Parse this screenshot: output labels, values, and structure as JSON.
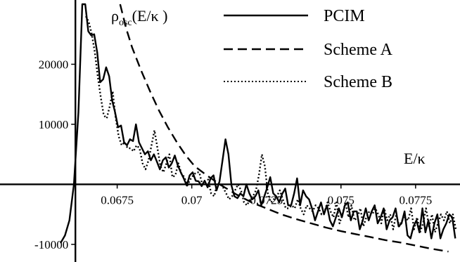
{
  "chart_data": {
    "type": "line",
    "title": "",
    "xlabel": "E/κ",
    "ylabel": "ρosc(E/κ )",
    "xlim": [
      0.0656,
      0.0788
    ],
    "ylim": [
      -12000,
      30000
    ],
    "x_ticks": [
      {
        "value": 0.0675,
        "label": "0.0675"
      },
      {
        "value": 0.07,
        "label": "0.07"
      },
      {
        "value": 0.0725,
        "label": "0.0725"
      },
      {
        "value": 0.075,
        "label": "0.075"
      },
      {
        "value": 0.0775,
        "label": "0.0775"
      }
    ],
    "y_ticks": [
      {
        "value": 20000,
        "label": "20000"
      },
      {
        "value": 10000,
        "label": "10000"
      },
      {
        "value": -10000,
        "label": "-10000"
      }
    ],
    "grid": false,
    "legend": {
      "placement": "top-right"
    },
    "series": [
      {
        "name": "PCIM",
        "style": "solid",
        "x": [
          0.0656,
          0.06575,
          0.0659,
          0.06605,
          0.0662,
          0.06633,
          0.06643,
          0.06653,
          0.06663,
          0.06673,
          0.06683,
          0.06693,
          0.06703,
          0.06713,
          0.06723,
          0.06733,
          0.06743,
          0.06753,
          0.06763,
          0.06773,
          0.06783,
          0.06793,
          0.06803,
          0.06813,
          0.06823,
          0.06833,
          0.06843,
          0.06853,
          0.06863,
          0.06873,
          0.06883,
          0.06893,
          0.06903,
          0.06913,
          0.06923,
          0.06933,
          0.06943,
          0.06953,
          0.06963,
          0.06973,
          0.06983,
          0.06993,
          0.07003,
          0.07013,
          0.07023,
          0.07033,
          0.07043,
          0.07053,
          0.07063,
          0.07073,
          0.07083,
          0.07093,
          0.07103,
          0.07113,
          0.07123,
          0.07133,
          0.07143,
          0.07153,
          0.07163,
          0.07173,
          0.07183,
          0.07193,
          0.07203,
          0.07213,
          0.07223,
          0.07233,
          0.07243,
          0.07253,
          0.07263,
          0.07273,
          0.07283,
          0.07293,
          0.07303,
          0.07313,
          0.07323,
          0.07333,
          0.07343,
          0.07353,
          0.07363,
          0.07373,
          0.07383,
          0.07393,
          0.07403,
          0.07413,
          0.07423,
          0.07433,
          0.07443,
          0.07453,
          0.07463,
          0.07473,
          0.07483,
          0.07493,
          0.07503,
          0.07513,
          0.07523,
          0.07533,
          0.07543,
          0.07553,
          0.07563,
          0.07573,
          0.07583,
          0.07593,
          0.07603,
          0.07613,
          0.07623,
          0.07633,
          0.07643,
          0.07653,
          0.07663,
          0.07673,
          0.07683,
          0.07693,
          0.07703,
          0.07713,
          0.07723,
          0.07733,
          0.07743,
          0.07753,
          0.07763,
          0.07773,
          0.07783,
          0.07793,
          0.07803,
          0.07813,
          0.07823,
          0.07833,
          0.07843,
          0.07853,
          0.07863,
          0.07873,
          0.07883
        ],
        "y": [
          -9800,
          -8500,
          -6000,
          0,
          12000,
          30000,
          30000,
          25500,
          24800,
          25000,
          22000,
          17000,
          17500,
          19500,
          18000,
          14000,
          12000,
          9500,
          9800,
          7000,
          6500,
          7500,
          7200,
          10000,
          7000,
          6000,
          5000,
          5500,
          4000,
          5000,
          3800,
          2500,
          4000,
          4500,
          2800,
          3500,
          4800,
          3200,
          2000,
          1000,
          -200,
          1500,
          2000,
          600,
          500,
          -300,
          600,
          -500,
          1000,
          1500,
          -1000,
          500,
          4000,
          7500,
          5000,
          -200,
          -2000,
          -2300,
          -1500,
          -2000,
          0,
          -1500,
          -2500,
          -2000,
          -1000,
          -3500,
          -2000,
          -500,
          1200,
          -1500,
          -2000,
          -3000,
          -1600,
          -700,
          -3500,
          -3500,
          -1500,
          1000,
          -3500,
          -1000,
          -2000,
          -2500,
          -4000,
          -6000,
          -4500,
          -3000,
          -5000,
          -3500,
          -6000,
          -7000,
          -5500,
          -4000,
          -5500,
          -3500,
          -3000,
          -6000,
          -4500,
          -4500,
          -7500,
          -6000,
          -4000,
          -6000,
          -4500,
          -3500,
          -6500,
          -5500,
          -4000,
          -7500,
          -6000,
          -5500,
          -4000,
          -7000,
          -6500,
          -4500,
          -8500,
          -9000,
          -7000,
          -6000,
          -8000,
          -4000,
          -8000,
          -6000,
          -9000,
          -6500,
          -5000,
          -9000,
          -7500,
          -6500,
          -5000,
          -5500,
          -9000
        ],
        "label_printed": "PCIM"
      },
      {
        "name": "Scheme A",
        "style": "dashed",
        "x": [
          0.0676,
          0.0678,
          0.068,
          0.0683,
          0.0686,
          0.0689,
          0.0692,
          0.0695,
          0.0698,
          0.0701,
          0.0705,
          0.071,
          0.0715,
          0.072,
          0.0725,
          0.073,
          0.0735,
          0.074,
          0.0745,
          0.075,
          0.0755,
          0.076,
          0.0765,
          0.077,
          0.0775,
          0.078,
          0.0786
        ],
        "y": [
          30000,
          26000,
          22800,
          19000,
          15500,
          12300,
          9500,
          7000,
          4800,
          3000,
          1500,
          -200,
          -1700,
          -3000,
          -4000,
          -5000,
          -5800,
          -6500,
          -7200,
          -7800,
          -8300,
          -8800,
          -9300,
          -9700,
          -10200,
          -10700,
          -11200
        ]
      },
      {
        "name": "Scheme B",
        "style": "dotted",
        "x": [
          0.06645,
          0.06655,
          0.06665,
          0.06675,
          0.06685,
          0.06695,
          0.06705,
          0.06715,
          0.06725,
          0.06735,
          0.06745,
          0.06755,
          0.06765,
          0.06775,
          0.06785,
          0.06795,
          0.06805,
          0.06815,
          0.06825,
          0.06835,
          0.06845,
          0.06855,
          0.06865,
          0.06875,
          0.06885,
          0.06895,
          0.06905,
          0.06915,
          0.06925,
          0.06935,
          0.06945,
          0.06955,
          0.06965,
          0.06975,
          0.06985,
          0.06995,
          0.07005,
          0.07015,
          0.07025,
          0.07035,
          0.07045,
          0.07055,
          0.07065,
          0.07075,
          0.07085,
          0.07095,
          0.07105,
          0.07115,
          0.07125,
          0.07135,
          0.07145,
          0.07155,
          0.07165,
          0.07175,
          0.07185,
          0.07195,
          0.07205,
          0.07215,
          0.07225,
          0.07235,
          0.07245,
          0.07255,
          0.07265,
          0.07275,
          0.07285,
          0.07295,
          0.07305,
          0.07315,
          0.07325,
          0.07335,
          0.07345,
          0.07355,
          0.07365,
          0.07375,
          0.07385,
          0.07395,
          0.07405,
          0.07415,
          0.07425,
          0.07435,
          0.07445,
          0.07455,
          0.07465,
          0.07475,
          0.07485,
          0.07495,
          0.07505,
          0.07515,
          0.07525,
          0.07535,
          0.07545,
          0.07555,
          0.07565,
          0.07575,
          0.07585,
          0.07595,
          0.07605,
          0.07615,
          0.07625,
          0.07635,
          0.07645,
          0.07655,
          0.07665,
          0.07675,
          0.07685,
          0.07695,
          0.07705,
          0.07715,
          0.07725,
          0.07735,
          0.07745,
          0.07755,
          0.07765,
          0.07775,
          0.07785,
          0.07795,
          0.07805,
          0.07815,
          0.07825,
          0.07835,
          0.07845,
          0.07855,
          0.07865,
          0.07875,
          0.07885
        ],
        "y": [
          28000,
          27000,
          25000,
          22000,
          18000,
          14500,
          11500,
          11000,
          13000,
          15500,
          11000,
          8000,
          6500,
          7000,
          6000,
          6000,
          5500,
          6500,
          6000,
          3500,
          2500,
          4000,
          6500,
          9000,
          6000,
          3000,
          2000,
          3500,
          5000,
          1200,
          1500,
          3500,
          1800,
          1200,
          -200,
          800,
          1500,
          2000,
          2000,
          0,
          500,
          800,
          -1500,
          -2000,
          0,
          0,
          -500,
          -1500,
          -2500,
          -2000,
          -1000,
          0,
          -1000,
          -3000,
          -3500,
          -2500,
          -2000,
          -1000,
          1500,
          5000,
          3000,
          -1500,
          -3000,
          -2500,
          -2000,
          -1000,
          -2500,
          -4000,
          -4000,
          -3500,
          -4000,
          -2500,
          -4000,
          -5000,
          -3500,
          -4000,
          -4500,
          -3500,
          -4000,
          -5000,
          -4500,
          -3000,
          -4500,
          -5500,
          -3000,
          -6500,
          -5000,
          -3000,
          -5500,
          -3500,
          -6000,
          -5500,
          -4000,
          -7000,
          -5500,
          -4500,
          -5000,
          -4000,
          -5000,
          -6500,
          -4000,
          -6000,
          -5000,
          -7500,
          -5000,
          -7000,
          -6000,
          -5500,
          -6000,
          -4000,
          -7500,
          -5500,
          -8000,
          -6500,
          -4000,
          -7000,
          -5000,
          -8000,
          -6500,
          -5000,
          -6000,
          -4500,
          -6500,
          -5000,
          -7500
        ]
      }
    ]
  },
  "legend_items": [
    {
      "label": "PCIM",
      "style": "solid"
    },
    {
      "label": "Scheme A",
      "style": "dashed"
    },
    {
      "label": "Scheme B",
      "style": "dotted"
    }
  ]
}
